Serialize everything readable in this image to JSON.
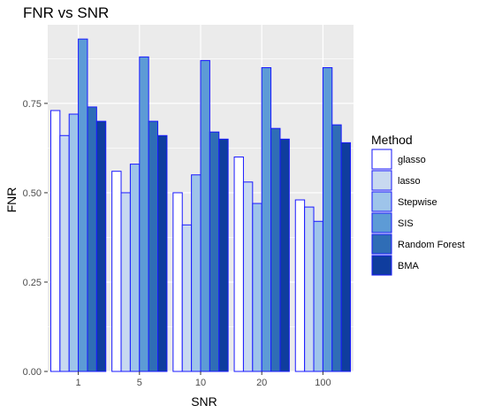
{
  "chart_data": {
    "type": "bar",
    "title": "FNR vs SNR",
    "xlabel": "SNR",
    "ylabel": "FNR",
    "categories": [
      "1",
      "5",
      "10",
      "20",
      "100"
    ],
    "ylim": [
      0,
      0.97
    ],
    "yticks": [
      0.0,
      0.25,
      0.5,
      0.75
    ],
    "ytick_labels": [
      "0.00",
      "0.25",
      "0.50",
      "0.75"
    ],
    "grid": true,
    "legend": {
      "title": "Method",
      "position": "right"
    },
    "series": [
      {
        "name": "glasso",
        "color": "#ffffff",
        "values": [
          0.73,
          0.56,
          0.5,
          0.6,
          0.48
        ]
      },
      {
        "name": "lasso",
        "color": "#c8d9f0",
        "values": [
          0.66,
          0.5,
          0.41,
          0.53,
          0.46
        ]
      },
      {
        "name": "Stepwise",
        "color": "#9ec4ea",
        "values": [
          0.72,
          0.58,
          0.55,
          0.47,
          0.42
        ]
      },
      {
        "name": "SIS",
        "color": "#5d9bd6",
        "values": [
          0.93,
          0.88,
          0.87,
          0.85,
          0.85
        ]
      },
      {
        "name": "Random Forest",
        "color": "#2f6db6",
        "values": [
          0.74,
          0.7,
          0.67,
          0.68,
          0.69
        ]
      },
      {
        "name": "BMA",
        "color": "#0f3d9e",
        "values": [
          0.7,
          0.66,
          0.65,
          0.65,
          0.64
        ]
      }
    ],
    "bar_stroke": "#1a1aff",
    "panel_bg": "#ebebeb",
    "grid_color": "#ffffff"
  }
}
